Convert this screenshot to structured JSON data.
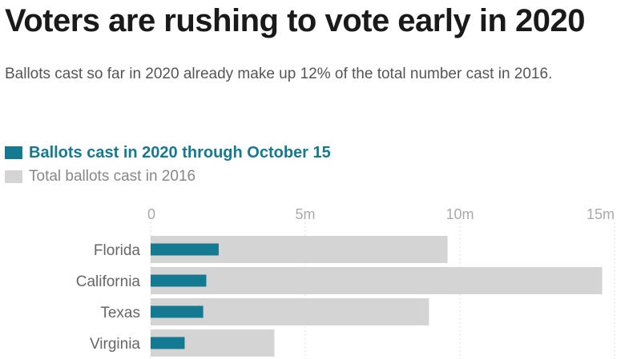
{
  "title": "Voters are rushing to vote early in 2020",
  "subtitle": "Ballots cast so far in 2020 already make up 12% of the total number cast in 2016.",
  "colors": {
    "series_2020": "#137a91",
    "series_2016": "#d4d4d4",
    "legend_2020_text": "#137a91"
  },
  "chart_data": {
    "type": "bar",
    "orientation": "horizontal",
    "categories": [
      "Florida",
      "California",
      "Texas",
      "Virginia"
    ],
    "series": [
      {
        "name": "Ballots  cast in 2020 through October 15",
        "values": [
          2.2,
          1.8,
          1.7,
          1.1
        ]
      },
      {
        "name": "Total ballots cast in 2016",
        "values": [
          9.6,
          14.6,
          9.0,
          4.0
        ]
      }
    ],
    "xlim": [
      0,
      15
    ],
    "ticks": [
      0,
      5,
      10,
      15
    ],
    "tick_labels": [
      "0",
      "5m",
      "10m",
      "15m"
    ],
    "grid": true,
    "legend_position": "top-left"
  }
}
